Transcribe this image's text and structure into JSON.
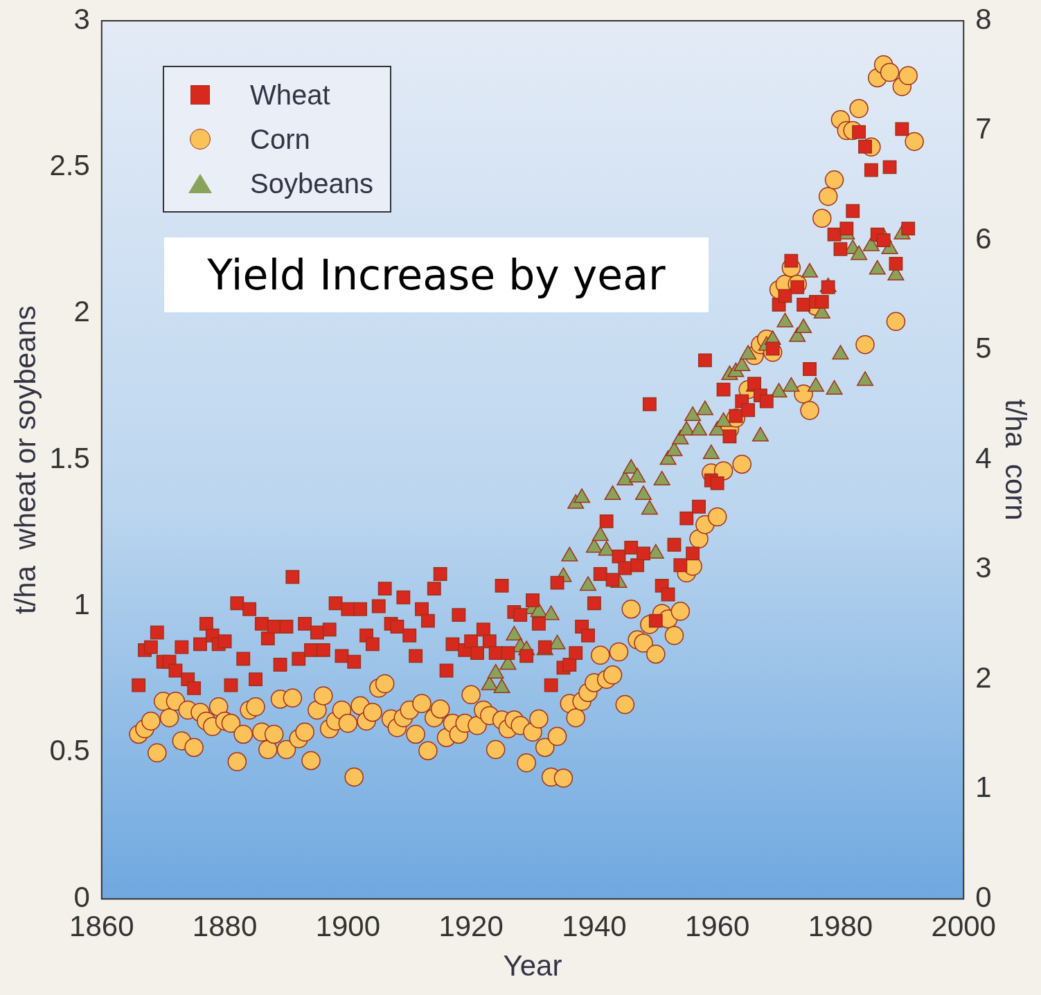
{
  "chart_data": {
    "type": "scatter",
    "title": "Yield Increase by year",
    "xlabel": "Year",
    "ylabel": "t/ha  wheat or soybeans",
    "y2label": "t/ha  corn",
    "xlim": [
      1860,
      2000
    ],
    "xticks": [
      1860,
      1880,
      1900,
      1920,
      1940,
      1960,
      1980,
      2000
    ],
    "ylim": [
      0,
      3
    ],
    "yticks": [
      0,
      0.5,
      1,
      1.5,
      2,
      2.5,
      3
    ],
    "y2lim": [
      0,
      8
    ],
    "y2ticks": [
      0,
      1,
      2,
      3,
      4,
      5,
      6,
      7,
      8
    ],
    "grid": false,
    "legend": "top left",
    "series": [
      {
        "name": "Wheat",
        "color": "#d8291e",
        "marker": "square",
        "x": [
          1866,
          1867,
          1868,
          1869,
          1870,
          1871,
          1872,
          1873,
          1874,
          1875,
          1876,
          1877,
          1878,
          1879,
          1880,
          1881,
          1882,
          1883,
          1884,
          1885,
          1886,
          1887,
          1888,
          1889,
          1890,
          1891,
          1892,
          1893,
          1894,
          1895,
          1896,
          1897,
          1898,
          1899,
          1900,
          1901,
          1902,
          1903,
          1904,
          1905,
          1906,
          1907,
          1908,
          1909,
          1910,
          1911,
          1912,
          1913,
          1914,
          1915,
          1916,
          1917,
          1918,
          1919,
          1920,
          1921,
          1922,
          1923,
          1924,
          1925,
          1926,
          1927,
          1928,
          1929,
          1930,
          1931,
          1932,
          1933,
          1934,
          1935,
          1936,
          1937,
          1938,
          1939,
          1940,
          1941,
          1942,
          1943,
          1944,
          1945,
          1946,
          1947,
          1948,
          1949,
          1950,
          1951,
          1952,
          1953,
          1954,
          1955,
          1956,
          1957,
          1958,
          1959,
          1960,
          1961,
          1962,
          1963,
          1964,
          1965,
          1966,
          1967,
          1968,
          1969,
          1970,
          1971,
          1972,
          1973,
          1974,
          1975,
          1976,
          1977,
          1978,
          1979,
          1980,
          1981,
          1982,
          1983,
          1984,
          1985,
          1986,
          1987,
          1988,
          1989,
          1990,
          1991
        ],
        "values": [
          0.73,
          0.85,
          0.86,
          0.91,
          0.81,
          0.81,
          0.78,
          0.86,
          0.75,
          0.72,
          0.87,
          0.94,
          0.9,
          0.87,
          0.88,
          0.73,
          1.01,
          0.82,
          0.99,
          0.75,
          0.94,
          0.89,
          0.93,
          0.8,
          0.93,
          1.1,
          0.82,
          0.94,
          0.85,
          0.91,
          0.85,
          0.92,
          1.01,
          0.83,
          0.99,
          0.81,
          0.99,
          0.9,
          0.87,
          1.0,
          1.06,
          0.94,
          0.93,
          1.03,
          0.9,
          0.83,
          0.99,
          0.95,
          1.06,
          1.11,
          0.78,
          0.87,
          0.97,
          0.85,
          0.88,
          0.84,
          0.92,
          0.88,
          0.84,
          1.07,
          0.84,
          0.98,
          0.97,
          0.83,
          1.02,
          0.94,
          0.86,
          0.73,
          1.08,
          0.79,
          0.8,
          0.84,
          0.93,
          0.9,
          1.01,
          1.11,
          1.29,
          1.09,
          1.17,
          1.13,
          1.2,
          1.14,
          1.18,
          1.69,
          0.95,
          1.07,
          1.04,
          1.21,
          1.14,
          1.3,
          1.18,
          1.34,
          1.84,
          1.43,
          1.42,
          1.74,
          1.58,
          1.65,
          1.7,
          1.67,
          1.76,
          1.72,
          1.7,
          1.88,
          2.03,
          2.06,
          2.18,
          2.09,
          2.03,
          1.81,
          2.04,
          2.04,
          2.09,
          2.27,
          2.22,
          2.29,
          2.35,
          2.62,
          2.57,
          2.49,
          2.27,
          2.25,
          2.5,
          2.17,
          2.63,
          2.29
        ]
      },
      {
        "name": "Corn",
        "color": "#fcc25a",
        "marker": "circle",
        "axis": "y2",
        "x": [
          1866,
          1867,
          1868,
          1869,
          1870,
          1871,
          1872,
          1873,
          1874,
          1875,
          1876,
          1877,
          1878,
          1879,
          1880,
          1881,
          1882,
          1883,
          1884,
          1885,
          1886,
          1887,
          1888,
          1889,
          1890,
          1891,
          1892,
          1893,
          1894,
          1895,
          1896,
          1897,
          1898,
          1899,
          1900,
          1901,
          1902,
          1903,
          1904,
          1905,
          1906,
          1907,
          1908,
          1909,
          1910,
          1911,
          1912,
          1913,
          1914,
          1915,
          1916,
          1917,
          1918,
          1919,
          1920,
          1921,
          1922,
          1923,
          1924,
          1925,
          1926,
          1927,
          1928,
          1929,
          1930,
          1931,
          1932,
          1933,
          1934,
          1935,
          1936,
          1937,
          1938,
          1939,
          1940,
          1941,
          1942,
          1943,
          1944,
          1945,
          1946,
          1947,
          1948,
          1949,
          1950,
          1951,
          1952,
          1953,
          1954,
          1955,
          1956,
          1957,
          1958,
          1959,
          1960,
          1961,
          1962,
          1963,
          1964,
          1965,
          1966,
          1967,
          1968,
          1969,
          1970,
          1971,
          1972,
          1973,
          1974,
          1975,
          1976,
          1977,
          1978,
          1979,
          1980,
          1981,
          1982,
          1983,
          1984,
          1985,
          1986,
          1987,
          1988,
          1989,
          1990,
          1991,
          1992
        ],
        "values": [
          1.5,
          1.55,
          1.62,
          1.33,
          1.8,
          1.65,
          1.8,
          1.44,
          1.72,
          1.38,
          1.7,
          1.62,
          1.57,
          1.75,
          1.62,
          1.6,
          1.25,
          1.5,
          1.72,
          1.75,
          1.52,
          1.36,
          1.5,
          1.82,
          1.36,
          1.83,
          1.46,
          1.52,
          1.26,
          1.72,
          1.85,
          1.55,
          1.62,
          1.72,
          1.6,
          1.11,
          1.76,
          1.62,
          1.7,
          1.92,
          1.96,
          1.64,
          1.56,
          1.65,
          1.72,
          1.5,
          1.78,
          1.35,
          1.65,
          1.73,
          1.47,
          1.6,
          1.5,
          1.6,
          1.86,
          1.58,
          1.72,
          1.67,
          1.36,
          1.63,
          1.55,
          1.63,
          1.58,
          1.24,
          1.52,
          1.64,
          1.38,
          1.11,
          1.48,
          1.1,
          1.78,
          1.65,
          1.8,
          1.88,
          1.97,
          2.22,
          2.0,
          2.04,
          2.25,
          1.77,
          2.64,
          2.36,
          2.33,
          2.5,
          2.23,
          2.6,
          2.55,
          2.4,
          2.62,
          2.97,
          3.03,
          3.28,
          3.41,
          3.88,
          3.48,
          3.9,
          4.28,
          4.38,
          3.96,
          4.64,
          4.95,
          5.05,
          5.1,
          4.98,
          5.55,
          5.6,
          5.75,
          5.6,
          4.6,
          4.45,
          5.4,
          6.2,
          6.4,
          6.55,
          7.1,
          7.0,
          7.0,
          7.2,
          5.05,
          6.85,
          7.48,
          7.6,
          7.53,
          5.26,
          7.4,
          7.5,
          6.9
        ]
      },
      {
        "name": "Soybeans",
        "color": "#8aa35a",
        "marker": "triangle",
        "x": [
          1923,
          1924,
          1925,
          1926,
          1927,
          1928,
          1929,
          1930,
          1931,
          1932,
          1933,
          1934,
          1935,
          1936,
          1937,
          1938,
          1939,
          1940,
          1941,
          1942,
          1943,
          1944,
          1945,
          1946,
          1947,
          1948,
          1949,
          1950,
          1951,
          1952,
          1953,
          1954,
          1955,
          1956,
          1957,
          1958,
          1959,
          1960,
          1961,
          1962,
          1963,
          1964,
          1965,
          1966,
          1967,
          1968,
          1969,
          1970,
          1971,
          1972,
          1973,
          1974,
          1975,
          1976,
          1977,
          1978,
          1979,
          1980,
          1981,
          1982,
          1983,
          1984,
          1985,
          1986,
          1987,
          1988,
          1989,
          1990
        ],
        "values": [
          0.73,
          0.77,
          0.72,
          0.8,
          0.9,
          0.86,
          0.85,
          0.99,
          0.98,
          0.85,
          0.97,
          0.87,
          1.1,
          1.17,
          1.35,
          1.37,
          1.07,
          1.2,
          1.24,
          1.19,
          1.38,
          1.08,
          1.43,
          1.47,
          1.44,
          1.38,
          1.33,
          1.18,
          1.43,
          1.5,
          1.53,
          1.57,
          1.6,
          1.65,
          1.6,
          1.67,
          1.52,
          1.6,
          1.63,
          1.79,
          1.8,
          1.82,
          1.86,
          1.75,
          1.58,
          1.89,
          1.91,
          1.73,
          1.97,
          1.75,
          1.92,
          1.95,
          2.14,
          1.75,
          2.0,
          2.09,
          1.74,
          1.86,
          2.27,
          2.22,
          2.2,
          1.77,
          2.23,
          2.15,
          2.26,
          2.22,
          2.13,
          2.27
        ]
      }
    ]
  }
}
